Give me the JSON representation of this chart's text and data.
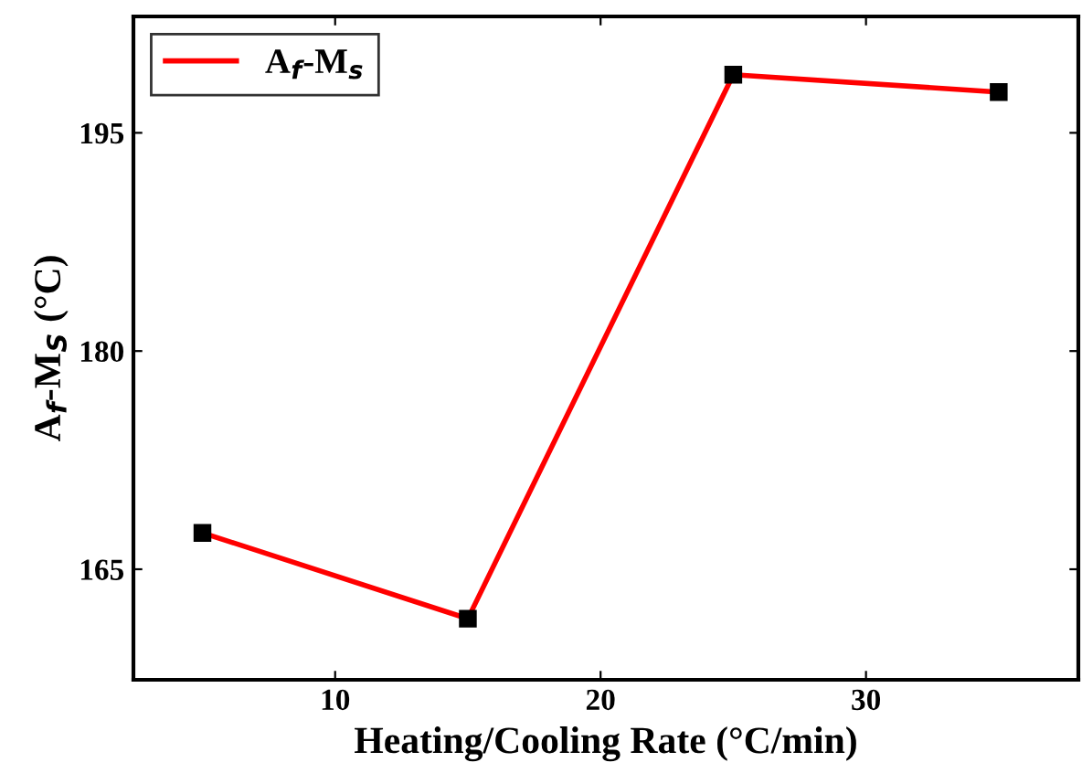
{
  "chart_data": {
    "type": "line",
    "xlabel": "Heating/Cooling Rate (°C/min)",
    "ylabel": "A$_{f}$-M$_{S}$ (°C)",
    "x": [
      5,
      15,
      25,
      35
    ],
    "series": [
      {
        "name": "A$_{f}$-M$_{s}$",
        "color": "#ff0000",
        "values": [
          167.5,
          161.6,
          199.0,
          197.8
        ]
      }
    ],
    "xlim": [
      2.4,
      38
    ],
    "xticks": [
      10,
      20,
      30
    ],
    "ylim": [
      157.4,
      203
    ],
    "yticks": [
      165,
      180,
      195
    ],
    "marker": "square",
    "line_style": "solid",
    "legend": "top left",
    "grid": false
  }
}
